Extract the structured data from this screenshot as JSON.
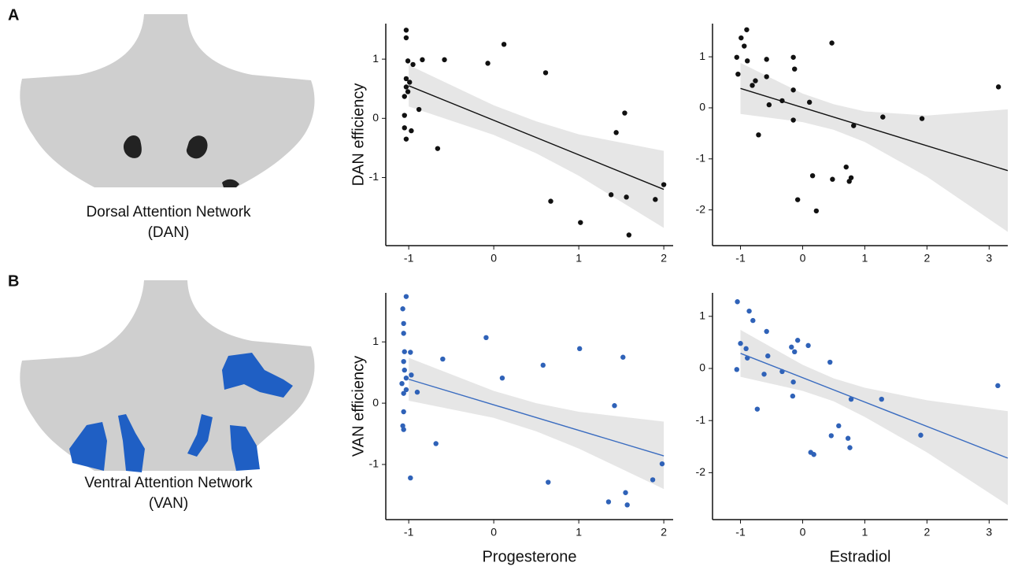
{
  "figure": {
    "panel_labels": [
      "A",
      "B"
    ],
    "networks": [
      {
        "name": "Dorsal Attention Network",
        "abbr": "(DAN)"
      },
      {
        "name": "Ventral Attention Network",
        "abbr": "(VAN)"
      }
    ]
  },
  "chart_data": [
    {
      "type": "scatter",
      "ylabel": "DAN efficiency",
      "color": "#111111",
      "line_color": "#111111",
      "band_color": "#e6e6e6",
      "x": [
        -1.03,
        -1.03,
        -1.01,
        -0.95,
        -0.84,
        -1.03,
        -1.03,
        -1.01,
        -0.99,
        -1.05,
        -0.88,
        -1.05,
        -1.05,
        -1.03,
        -0.97,
        -0.66,
        -0.58,
        -0.07,
        0.12,
        0.61,
        0.67,
        1.02,
        1.38,
        1.44,
        1.54,
        1.56,
        1.59,
        1.9,
        2.0
      ],
      "values": [
        1.49,
        1.36,
        0.97,
        0.91,
        0.99,
        0.67,
        0.53,
        0.45,
        0.61,
        0.37,
        0.15,
        0.05,
        -0.16,
        -0.35,
        -0.21,
        -0.51,
        0.99,
        0.93,
        1.25,
        0.77,
        -1.4,
        -1.76,
        -1.29,
        -0.24,
        0.09,
        -1.33,
        -1.97,
        -1.37,
        -1.12
      ],
      "fit_line": {
        "x": [
          -1,
          2
        ],
        "y": [
          0.55,
          -1.2
        ]
      },
      "ci_band": {
        "x": [
          -1,
          0,
          0.5,
          1,
          2
        ],
        "upper": [
          0.9,
          0.22,
          -0.05,
          -0.27,
          -0.55
        ],
        "lower": [
          0.2,
          -0.28,
          -0.59,
          -0.97,
          -1.85
        ]
      },
      "xlim": [
        -1.27,
        2.11
      ],
      "ylim": [
        -2.15,
        1.6
      ],
      "xticks": [
        -1,
        0,
        1,
        2
      ],
      "yticks": [
        -1,
        0,
        1
      ]
    },
    {
      "type": "scatter",
      "color": "#111111",
      "line_color": "#111111",
      "band_color": "#e6e6e6",
      "x": [
        -1.06,
        -1.04,
        -0.99,
        -0.9,
        -0.89,
        -0.81,
        -0.76,
        -0.94,
        -0.71,
        -0.58,
        -0.58,
        -0.54,
        -0.33,
        -0.15,
        -0.13,
        -0.15,
        -0.15,
        -0.08,
        0.11,
        0.16,
        0.22,
        0.47,
        0.48,
        0.7,
        0.75,
        0.78,
        0.82,
        1.29,
        1.92,
        3.15
      ],
      "values": [
        0.99,
        0.66,
        1.37,
        1.53,
        0.92,
        0.44,
        0.53,
        1.21,
        -0.53,
        0.95,
        0.61,
        0.06,
        0.14,
        0.99,
        0.76,
        0.35,
        -0.24,
        -1.8,
        0.11,
        -1.33,
        -2.02,
        1.27,
        -1.4,
        -1.16,
        -1.44,
        -1.37,
        -0.35,
        -0.18,
        -0.21,
        0.41
      ],
      "fit_line": {
        "x": [
          -1,
          3.3
        ],
        "y": [
          0.38,
          -1.23
        ]
      },
      "ci_band": {
        "x": [
          -1,
          0,
          0.5,
          1,
          2,
          3.3
        ],
        "upper": [
          0.88,
          0.28,
          0.07,
          -0.07,
          -0.15,
          -0.03
        ],
        "lower": [
          -0.12,
          -0.28,
          -0.43,
          -0.67,
          -1.35,
          -2.43
        ]
      },
      "xlim": [
        -1.45,
        3.3
      ],
      "ylim": [
        -2.7,
        1.65
      ],
      "xticks": [
        -1,
        0,
        1,
        2,
        3
      ],
      "yticks": [
        -2,
        -1,
        0,
        1
      ]
    },
    {
      "type": "scatter",
      "ylabel": "VAN efficiency",
      "xlabel": "Progesterone",
      "color": "#2f62b8",
      "line_color": "#3a6cc0",
      "band_color": "#e6e6e6",
      "x": [
        -1.03,
        -1.07,
        -1.06,
        -1.06,
        -1.05,
        -1.06,
        -1.05,
        -1.03,
        -1.08,
        -1.03,
        -0.98,
        -0.97,
        -0.9,
        -1.06,
        -1.06,
        -1.07,
        -1.06,
        -0.98,
        -0.68,
        -0.6,
        -0.09,
        0.1,
        0.58,
        0.64,
        1.01,
        1.35,
        1.42,
        1.52,
        1.55,
        1.57,
        1.87,
        1.98
      ],
      "values": [
        1.74,
        1.54,
        1.3,
        1.14,
        0.84,
        0.68,
        0.54,
        0.41,
        0.32,
        0.22,
        0.83,
        0.46,
        0.18,
        0.16,
        -0.14,
        -0.37,
        -0.43,
        -1.22,
        -0.66,
        0.72,
        1.07,
        0.41,
        0.62,
        -1.29,
        0.89,
        -1.61,
        -0.04,
        0.75,
        -1.46,
        -1.66,
        -1.25,
        -0.99
      ],
      "fit_line": {
        "x": [
          -1,
          2
        ],
        "y": [
          0.39,
          -0.86
        ]
      },
      "ci_band": {
        "x": [
          -1,
          0,
          0.5,
          1,
          2
        ],
        "upper": [
          0.74,
          0.2,
          0.0,
          -0.14,
          -0.3
        ],
        "lower": [
          0.04,
          -0.24,
          -0.46,
          -0.74,
          -1.4
        ]
      },
      "xlim": [
        -1.27,
        2.11
      ],
      "ylim": [
        -1.9,
        1.8
      ],
      "xticks": [
        -1,
        0,
        1,
        2
      ],
      "yticks": [
        -1,
        0,
        1
      ]
    },
    {
      "type": "scatter",
      "xlabel": "Estradiol",
      "color": "#2f62b8",
      "line_color": "#3a6cc0",
      "band_color": "#e6e6e6",
      "x": [
        -1.05,
        -0.86,
        -0.8,
        -1.0,
        -0.91,
        -0.89,
        -1.06,
        -0.73,
        -0.58,
        -0.56,
        -0.62,
        -0.33,
        -0.18,
        -0.13,
        -0.08,
        0.09,
        -0.15,
        -0.16,
        0.13,
        0.18,
        0.44,
        0.46,
        0.58,
        0.73,
        0.76,
        0.78,
        1.27,
        1.9,
        3.14
      ],
      "values": [
        1.28,
        1.1,
        0.92,
        0.48,
        0.38,
        0.2,
        -0.02,
        -0.78,
        0.71,
        0.24,
        -0.11,
        -0.06,
        0.41,
        0.32,
        0.54,
        0.44,
        -0.26,
        -0.53,
        -1.61,
        -1.65,
        0.12,
        -1.29,
        -1.1,
        -1.34,
        -1.52,
        -0.59,
        -0.59,
        -1.28,
        -0.33
      ],
      "fit_line": {
        "x": [
          -1,
          3.3
        ],
        "y": [
          0.29,
          -1.72
        ]
      },
      "ci_band": {
        "x": [
          -1,
          0,
          0.5,
          1,
          2,
          3.3
        ],
        "upper": [
          0.74,
          0.07,
          -0.19,
          -0.37,
          -0.61,
          -0.82
        ],
        "lower": [
          -0.16,
          -0.43,
          -0.63,
          -0.93,
          -1.61,
          -2.62
        ]
      },
      "xlim": [
        -1.45,
        3.3
      ],
      "ylim": [
        -2.9,
        1.45
      ],
      "xticks": [
        -1,
        0,
        1,
        2,
        3
      ],
      "yticks": [
        -2,
        -1,
        0,
        1
      ]
    }
  ]
}
